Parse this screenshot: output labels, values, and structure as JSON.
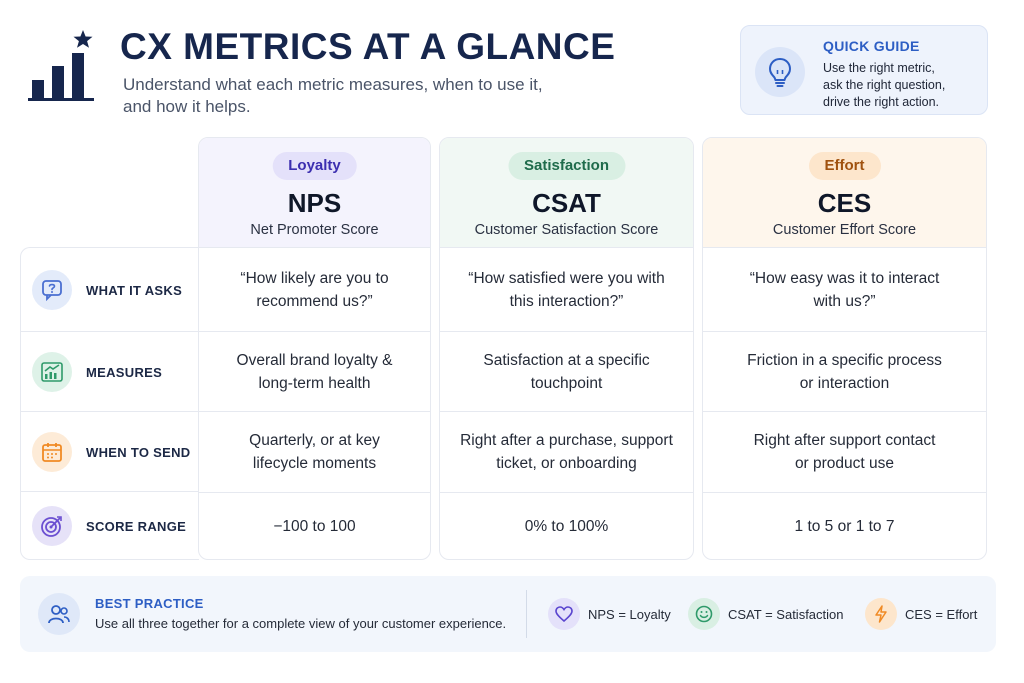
{
  "header": {
    "title": "CX METRICS AT A GLANCE",
    "subtitle_line1": "Understand what each metric measures, when to use it,",
    "subtitle_line2": "and how it helps."
  },
  "quick_guide": {
    "title": "QUICK GUIDE",
    "line1": "Use the right metric,",
    "line2": "ask the right question,",
    "line3": "drive the right action."
  },
  "row_labels": [
    {
      "label": "WHAT IT ASKS",
      "icon": "question-bubble-icon",
      "color": "#4a6fd1"
    },
    {
      "label": "MEASURES",
      "icon": "growth-chart-icon",
      "color": "#2f9a6a"
    },
    {
      "label": "WHEN TO SEND",
      "icon": "calendar-icon",
      "color": "#f08a24"
    },
    {
      "label": "SCORE RANGE",
      "icon": "target-icon",
      "color": "#6b4fd1"
    }
  ],
  "columns": [
    {
      "badge": "Loyalty",
      "abbr": "NPS",
      "full": "Net Promoter Score",
      "asks_line1": "“How likely are you to",
      "asks_line2": "recommend us?”",
      "measures_line1": "Overall brand loyalty &",
      "measures_line2": "long-term health",
      "when_line1": "Quarterly, or at key",
      "when_line2": "lifecycle moments",
      "range": "−100 to 100",
      "accent": "#3c2fb0"
    },
    {
      "badge": "Satisfaction",
      "abbr": "CSAT",
      "full": "Customer Satisfaction Score",
      "asks_line1": "“How satisfied were you with",
      "asks_line2": "this interaction?”",
      "measures_line1": "Satisfaction at a specific",
      "measures_line2": "touchpoint",
      "when_line1": "Right after a purchase, support",
      "when_line2": "ticket, or onboarding",
      "range": "0% to 100%",
      "accent": "#1f6b4b"
    },
    {
      "badge": "Effort",
      "abbr": "CES",
      "full": "Customer Effort Score",
      "asks_line1": "“How easy was it to interact",
      "asks_line2": "with us?”",
      "measures_line1": "Friction in a specific process",
      "measures_line2": "or interaction",
      "when_line1": "Right after support contact",
      "when_line2": "or product use",
      "range": "1 to 5 or 1 to 7",
      "accent": "#a0520f"
    }
  ],
  "footer": {
    "title": "BEST PRACTICE",
    "text": "Use all three together for a complete view of your customer experience.",
    "legend": [
      {
        "text": "NPS = Loyalty",
        "icon": "heart-icon"
      },
      {
        "text": "CSAT = Satisfaction",
        "icon": "smiley-icon"
      },
      {
        "text": "CES = Effort",
        "icon": "lightning-icon"
      }
    ]
  }
}
